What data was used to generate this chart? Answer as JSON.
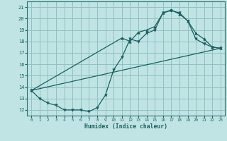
{
  "xlabel": "Humidex (Indice chaleur)",
  "bg_color": "#c0e4e4",
  "grid_color": "#90c0c0",
  "line_color": "#1a6060",
  "spine_color": "#2a7070",
  "xlim": [
    -0.5,
    23.5
  ],
  "ylim": [
    11.5,
    21.5
  ],
  "xticks": [
    0,
    1,
    2,
    3,
    4,
    5,
    6,
    7,
    8,
    9,
    10,
    11,
    12,
    13,
    14,
    15,
    16,
    17,
    18,
    19,
    20,
    21,
    22,
    23
  ],
  "yticks": [
    12,
    13,
    14,
    15,
    16,
    17,
    18,
    19,
    20,
    21
  ],
  "line1_x": [
    0,
    1,
    2,
    3,
    4,
    5,
    6,
    7,
    8,
    9,
    10,
    11,
    12,
    13,
    14,
    15,
    16,
    17,
    18,
    19,
    20,
    21,
    22,
    23
  ],
  "line1_y": [
    13.7,
    13.0,
    12.6,
    12.4,
    12.0,
    12.0,
    12.0,
    11.85,
    12.2,
    13.3,
    15.5,
    16.6,
    18.2,
    18.0,
    18.7,
    19.0,
    20.5,
    20.7,
    20.5,
    19.8,
    18.2,
    17.8,
    17.5,
    17.4
  ],
  "line2_x": [
    0,
    11,
    12,
    13,
    14,
    15,
    16,
    17,
    18,
    19,
    20,
    21,
    22,
    23
  ],
  "line2_y": [
    13.7,
    18.3,
    18.0,
    18.8,
    19.0,
    19.3,
    20.5,
    20.75,
    20.4,
    19.8,
    18.7,
    18.2,
    17.5,
    17.4
  ],
  "line3_x": [
    0,
    23
  ],
  "line3_y": [
    13.7,
    17.4
  ]
}
